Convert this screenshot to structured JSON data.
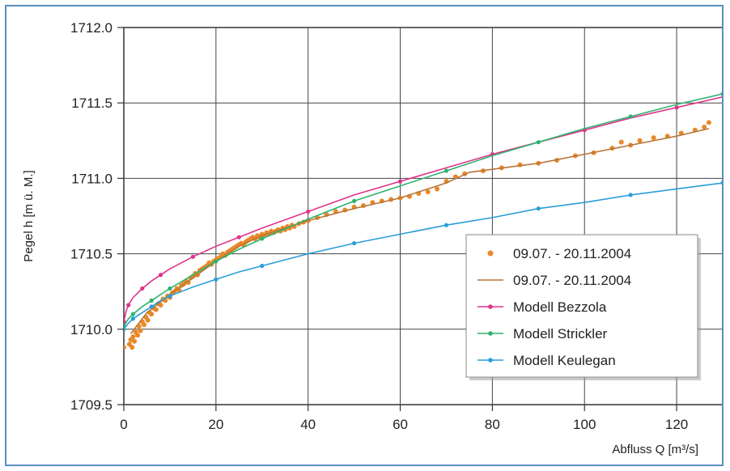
{
  "chart_data": {
    "type": "scatter",
    "title": "",
    "xlabel": "Abfluss Q [m³/s]",
    "ylabel": "Pegel h [m ü. M.]",
    "xlim": [
      0,
      130
    ],
    "ylim": [
      1709.5,
      1712.0
    ],
    "x_ticks": [
      0,
      20,
      40,
      60,
      80,
      100,
      120
    ],
    "y_ticks": [
      1709.5,
      1710.0,
      1710.5,
      1711.0,
      1711.5,
      1712.0
    ],
    "x_tick_labels": [
      "0",
      "20",
      "40",
      "60",
      "80",
      "100",
      "120"
    ],
    "y_tick_labels": [
      "1709.5",
      "1710.0",
      "1710.5",
      "1711.0",
      "1711.5",
      "1712.0"
    ],
    "grid": true,
    "legend_position": "center-right",
    "series": [
      {
        "name": "09.07. - 20.11.2004",
        "kind": "scatter",
        "color": "#e8892a",
        "points": [
          [
            0.0,
            1709.88
          ],
          [
            1.2,
            1709.9
          ],
          [
            1.5,
            1709.93
          ],
          [
            1.8,
            1709.88
          ],
          [
            2.0,
            1709.95
          ],
          [
            2.3,
            1709.92
          ],
          [
            2.6,
            1709.98
          ],
          [
            3.0,
            1709.96
          ],
          [
            3.3,
            1710.02
          ],
          [
            3.6,
            1709.99
          ],
          [
            4.0,
            1710.05
          ],
          [
            4.4,
            1710.03
          ],
          [
            4.8,
            1710.08
          ],
          [
            5.2,
            1710.06
          ],
          [
            5.6,
            1710.11
          ],
          [
            6.0,
            1710.1
          ],
          [
            6.5,
            1710.14
          ],
          [
            7.0,
            1710.13
          ],
          [
            7.5,
            1710.17
          ],
          [
            8.0,
            1710.16
          ],
          [
            8.5,
            1710.2
          ],
          [
            9.0,
            1710.19
          ],
          [
            9.5,
            1710.22
          ],
          [
            10.0,
            1710.21
          ],
          [
            10.5,
            1710.24
          ],
          [
            11.0,
            1710.25
          ],
          [
            11.5,
            1710.27
          ],
          [
            12.0,
            1710.26
          ],
          [
            12.5,
            1710.29
          ],
          [
            13.0,
            1710.3
          ],
          [
            13.5,
            1710.32
          ],
          [
            14.0,
            1710.31
          ],
          [
            14.5,
            1710.34
          ],
          [
            15.0,
            1710.35
          ],
          [
            15.5,
            1710.37
          ],
          [
            16.0,
            1710.36
          ],
          [
            16.5,
            1710.39
          ],
          [
            17.0,
            1710.4
          ],
          [
            17.5,
            1710.41
          ],
          [
            18.0,
            1710.42
          ],
          [
            18.5,
            1710.44
          ],
          [
            19.0,
            1710.43
          ],
          [
            19.5,
            1710.45
          ],
          [
            20.0,
            1710.46
          ],
          [
            20.5,
            1710.47
          ],
          [
            21.0,
            1710.48
          ],
          [
            21.5,
            1710.5
          ],
          [
            22.0,
            1710.49
          ],
          [
            22.5,
            1710.51
          ],
          [
            23.0,
            1710.52
          ],
          [
            23.5,
            1710.53
          ],
          [
            24.0,
            1710.54
          ],
          [
            24.5,
            1710.55
          ],
          [
            25.0,
            1710.56
          ],
          [
            25.5,
            1710.57
          ],
          [
            26.0,
            1710.56
          ],
          [
            26.5,
            1710.58
          ],
          [
            27.0,
            1710.59
          ],
          [
            27.5,
            1710.6
          ],
          [
            28.0,
            1710.61
          ],
          [
            28.5,
            1710.6
          ],
          [
            29.0,
            1710.62
          ],
          [
            29.5,
            1710.61
          ],
          [
            30.0,
            1710.63
          ],
          [
            30.5,
            1710.62
          ],
          [
            31.0,
            1710.64
          ],
          [
            31.5,
            1710.63
          ],
          [
            32.0,
            1710.65
          ],
          [
            32.5,
            1710.64
          ],
          [
            33.0,
            1710.65
          ],
          [
            33.5,
            1710.66
          ],
          [
            34.0,
            1710.65
          ],
          [
            34.5,
            1710.67
          ],
          [
            35.0,
            1710.66
          ],
          [
            35.5,
            1710.68
          ],
          [
            36.0,
            1710.67
          ],
          [
            36.5,
            1710.69
          ],
          [
            37.0,
            1710.68
          ],
          [
            38.0,
            1710.7
          ],
          [
            39.0,
            1710.71
          ],
          [
            40.0,
            1710.72
          ],
          [
            42.0,
            1710.74
          ],
          [
            44.0,
            1710.76
          ],
          [
            46.0,
            1710.78
          ],
          [
            48.0,
            1710.79
          ],
          [
            50.0,
            1710.81
          ],
          [
            52.0,
            1710.82
          ],
          [
            54.0,
            1710.84
          ],
          [
            56.0,
            1710.85
          ],
          [
            58.0,
            1710.86
          ],
          [
            60.0,
            1710.87
          ],
          [
            62.0,
            1710.88
          ],
          [
            64.0,
            1710.9
          ],
          [
            66.0,
            1710.91
          ],
          [
            68.0,
            1710.93
          ],
          [
            70.0,
            1710.98
          ],
          [
            72.0,
            1711.01
          ],
          [
            74.0,
            1711.03
          ],
          [
            78.0,
            1711.05
          ],
          [
            82.0,
            1711.07
          ],
          [
            86.0,
            1711.09
          ],
          [
            90.0,
            1711.1
          ],
          [
            94.0,
            1711.12
          ],
          [
            98.0,
            1711.15
          ],
          [
            102.0,
            1711.17
          ],
          [
            106.0,
            1711.2
          ],
          [
            108.0,
            1711.24
          ],
          [
            110.0,
            1711.22
          ],
          [
            112.0,
            1711.25
          ],
          [
            115.0,
            1711.27
          ],
          [
            118.0,
            1711.28
          ],
          [
            121.0,
            1711.3
          ],
          [
            124.0,
            1711.32
          ],
          [
            126.0,
            1711.34
          ],
          [
            127.0,
            1711.37
          ]
        ]
      },
      {
        "name": "09.07. - 20.11.2004",
        "kind": "line",
        "color": "#b8763a",
        "points": [
          [
            1.5,
            1709.97
          ],
          [
            5,
            1710.11
          ],
          [
            10,
            1710.23
          ],
          [
            15,
            1710.34
          ],
          [
            20,
            1710.45
          ],
          [
            25,
            1710.55
          ],
          [
            30,
            1710.62
          ],
          [
            35,
            1710.67
          ],
          [
            40,
            1710.72
          ],
          [
            50,
            1710.8
          ],
          [
            60,
            1710.87
          ],
          [
            70,
            1710.97
          ],
          [
            75,
            1711.04
          ],
          [
            80,
            1711.06
          ],
          [
            90,
            1711.1
          ],
          [
            100,
            1711.16
          ],
          [
            110,
            1711.22
          ],
          [
            120,
            1711.28
          ],
          [
            127,
            1711.33
          ]
        ]
      },
      {
        "name": "Modell Bezzola",
        "kind": "line",
        "color": "#e0338a",
        "points": [
          [
            0,
            1710.05
          ],
          [
            0.5,
            1710.12
          ],
          [
            1,
            1710.16
          ],
          [
            2,
            1710.21
          ],
          [
            4,
            1710.27
          ],
          [
            6,
            1710.32
          ],
          [
            8,
            1710.36
          ],
          [
            10,
            1710.4
          ],
          [
            15,
            1710.48
          ],
          [
            20,
            1710.55
          ],
          [
            25,
            1710.61
          ],
          [
            30,
            1710.67
          ],
          [
            40,
            1710.78
          ],
          [
            50,
            1710.89
          ],
          [
            60,
            1710.98
          ],
          [
            70,
            1711.07
          ],
          [
            80,
            1711.16
          ],
          [
            90,
            1711.24
          ],
          [
            100,
            1711.32
          ],
          [
            110,
            1711.4
          ],
          [
            120,
            1711.47
          ],
          [
            130,
            1711.54
          ]
        ]
      },
      {
        "name": "Modell Strickler",
        "kind": "line",
        "color": "#2db36e",
        "points": [
          [
            0,
            1710.02
          ],
          [
            1,
            1710.07
          ],
          [
            2,
            1710.1
          ],
          [
            4,
            1710.15
          ],
          [
            6,
            1710.19
          ],
          [
            8,
            1710.23
          ],
          [
            10,
            1710.27
          ],
          [
            15,
            1710.36
          ],
          [
            20,
            1710.45
          ],
          [
            25,
            1710.53
          ],
          [
            30,
            1710.6
          ],
          [
            40,
            1710.73
          ],
          [
            50,
            1710.85
          ],
          [
            60,
            1710.95
          ],
          [
            70,
            1711.05
          ],
          [
            80,
            1711.15
          ],
          [
            90,
            1711.24
          ],
          [
            100,
            1711.33
          ],
          [
            110,
            1711.41
          ],
          [
            120,
            1711.49
          ],
          [
            130,
            1711.56
          ]
        ]
      },
      {
        "name": "Modell Keulegan",
        "kind": "line",
        "color": "#2a9ed8",
        "points": [
          [
            0,
            1710.0
          ],
          [
            1,
            1710.04
          ],
          [
            2,
            1710.07
          ],
          [
            4,
            1710.11
          ],
          [
            6,
            1710.15
          ],
          [
            8,
            1710.19
          ],
          [
            10,
            1710.22
          ],
          [
            15,
            1710.28
          ],
          [
            20,
            1710.33
          ],
          [
            25,
            1710.38
          ],
          [
            30,
            1710.42
          ],
          [
            40,
            1710.5
          ],
          [
            50,
            1710.57
          ],
          [
            60,
            1710.63
          ],
          [
            70,
            1710.69
          ],
          [
            80,
            1710.74
          ],
          [
            90,
            1710.8
          ],
          [
            100,
            1710.84
          ],
          [
            110,
            1710.89
          ],
          [
            120,
            1710.93
          ],
          [
            130,
            1710.97
          ]
        ]
      }
    ]
  }
}
